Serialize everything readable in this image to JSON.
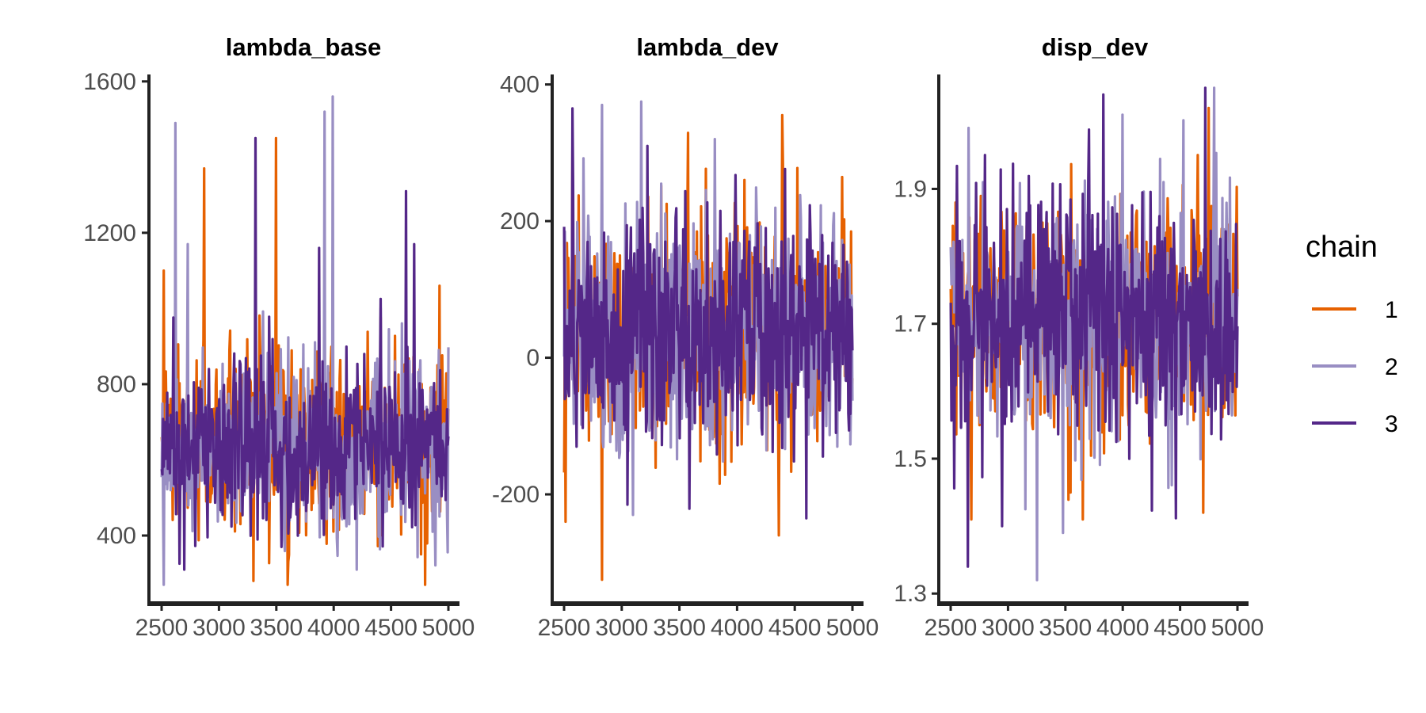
{
  "colors": {
    "chain1": "#e66101",
    "chain2": "#998ec3",
    "chain3": "#542788",
    "axis": "#222222",
    "tick_text": "#4d4d4d"
  },
  "legend": {
    "title": "chain",
    "entries": [
      {
        "label": "1",
        "color": "#e66101"
      },
      {
        "label": "2",
        "color": "#998ec3"
      },
      {
        "label": "3",
        "color": "#542788"
      }
    ]
  },
  "chart_data": [
    {
      "type": "line",
      "title": "lambda_base",
      "xlabel": "",
      "ylabel": "",
      "xlim": [
        2500,
        5000
      ],
      "ylim": [
        220,
        1610
      ],
      "x_ticks": [
        2500,
        3000,
        3500,
        4000,
        4500,
        5000
      ],
      "x_tick_labels": [
        "2500",
        "3000",
        "3500",
        "4000",
        "4500",
        "5000"
      ],
      "y_ticks": [
        400,
        800,
        1200,
        1600
      ],
      "y_tick_labels": [
        "400",
        "800",
        "1200",
        "1600"
      ],
      "grid": false,
      "trace": {
        "x_start": 2501,
        "x_end": 5000,
        "center": 640,
        "spread": 115,
        "min": 270,
        "max": 1560
      },
      "series": [
        {
          "name": "1",
          "color": "#e66101",
          "spikes": [
            {
              "x": 2870,
              "y": 1370
            },
            {
              "x": 3500,
              "y": 1450
            },
            {
              "x": 2520,
              "y": 1100
            },
            {
              "x": 4800,
              "y": 270
            },
            {
              "x": 3300,
              "y": 280
            },
            {
              "x": 4920,
              "y": 1060
            }
          ]
        },
        {
          "name": "2",
          "color": "#998ec3",
          "spikes": [
            {
              "x": 2620,
              "y": 1490
            },
            {
              "x": 3990,
              "y": 1560
            },
            {
              "x": 3920,
              "y": 1520
            },
            {
              "x": 2730,
              "y": 1170
            },
            {
              "x": 4200,
              "y": 310
            }
          ]
        },
        {
          "name": "3",
          "color": "#542788",
          "spikes": [
            {
              "x": 3320,
              "y": 1450
            },
            {
              "x": 4630,
              "y": 1310
            },
            {
              "x": 3870,
              "y": 1160
            },
            {
              "x": 4700,
              "y": 1170
            },
            {
              "x": 2700,
              "y": 310
            }
          ]
        }
      ]
    },
    {
      "type": "line",
      "title": "lambda_dev",
      "xlabel": "",
      "ylabel": "",
      "xlim": [
        2500,
        5000
      ],
      "ylim": [
        -360,
        410
      ],
      "x_ticks": [
        2500,
        3000,
        3500,
        4000,
        4500,
        5000
      ],
      "x_tick_labels": [
        "2500",
        "3000",
        "3500",
        "4000",
        "4500",
        "5000"
      ],
      "y_ticks": [
        -200,
        0,
        200,
        400
      ],
      "y_tick_labels": [
        "-200",
        "0",
        "200",
        "400"
      ],
      "grid": false,
      "trace": {
        "x_start": 2501,
        "x_end": 5000,
        "center": 40,
        "spread": 85,
        "min": -325,
        "max": 375
      },
      "series": [
        {
          "name": "1",
          "color": "#e66101",
          "spikes": [
            {
              "x": 2830,
              "y": -325
            },
            {
              "x": 4390,
              "y": 355
            },
            {
              "x": 4360,
              "y": -260
            },
            {
              "x": 2510,
              "y": -240
            },
            {
              "x": 2570,
              "y": 310
            }
          ]
        },
        {
          "name": "2",
          "color": "#998ec3",
          "spikes": [
            {
              "x": 3170,
              "y": 375
            },
            {
              "x": 2830,
              "y": 370
            },
            {
              "x": 3100,
              "y": -230
            },
            {
              "x": 3810,
              "y": 320
            }
          ]
        },
        {
          "name": "3",
          "color": "#542788",
          "spikes": [
            {
              "x": 2570,
              "y": 365
            },
            {
              "x": 3220,
              "y": 310
            },
            {
              "x": 4600,
              "y": -235
            },
            {
              "x": 3050,
              "y": -215
            }
          ]
        }
      ]
    },
    {
      "type": "line",
      "title": "disp_dev",
      "xlabel": "",
      "ylabel": "",
      "xlim": [
        2500,
        5000
      ],
      "ylim": [
        1.285,
        2.065
      ],
      "x_ticks": [
        2500,
        3000,
        3500,
        4000,
        4500,
        5000
      ],
      "x_tick_labels": [
        "2500",
        "3000",
        "3500",
        "4000",
        "4500",
        "5000"
      ],
      "y_ticks": [
        1.3,
        1.5,
        1.7,
        1.9
      ],
      "y_tick_labels": [
        "1.3",
        "1.5",
        "1.7",
        "1.9"
      ],
      "grid": false,
      "trace": {
        "x_start": 2501,
        "x_end": 5000,
        "center": 1.71,
        "spread": 0.085,
        "min": 1.32,
        "max": 2.05
      },
      "series": [
        {
          "name": "1",
          "color": "#e66101",
          "spikes": [
            {
              "x": 3650,
              "y": 2.04
            },
            {
              "x": 3650,
              "y": 1.41
            },
            {
              "x": 4750,
              "y": 2.02
            },
            {
              "x": 4700,
              "y": 1.42
            },
            {
              "x": 2680,
              "y": 1.41
            }
          ]
        },
        {
          "name": "2",
          "color": "#998ec3",
          "spikes": [
            {
              "x": 3250,
              "y": 1.32
            },
            {
              "x": 4800,
              "y": 2.05
            },
            {
              "x": 3480,
              "y": 1.39
            },
            {
              "x": 4000,
              "y": 2.01
            }
          ]
        },
        {
          "name": "3",
          "color": "#542788",
          "spikes": [
            {
              "x": 2650,
              "y": 1.34
            },
            {
              "x": 4720,
              "y": 2.05
            },
            {
              "x": 2950,
              "y": 1.4
            },
            {
              "x": 3830,
              "y": 2.04
            }
          ]
        }
      ]
    }
  ]
}
